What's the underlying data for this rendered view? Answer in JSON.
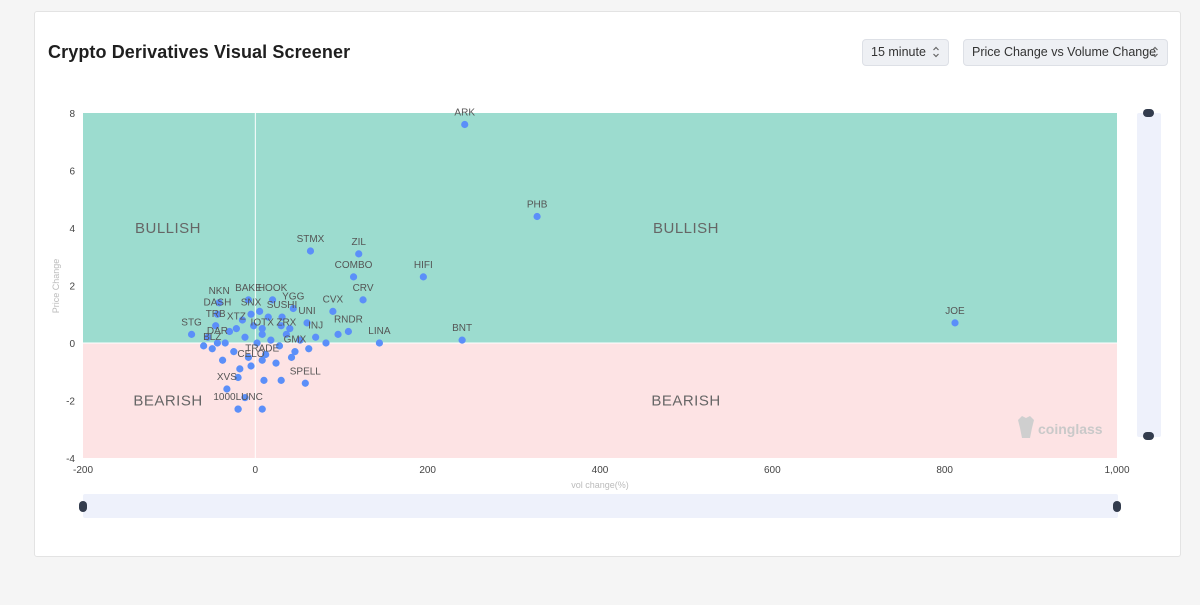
{
  "header": {
    "title": "Crypto Derivatives Visual Screener",
    "interval_value": "15 minute",
    "metric_value": "Price Change vs Volume Change"
  },
  "watermark": "coinglass",
  "colors": {
    "bullish": "#9cdccf",
    "bearish": "#fde3e4",
    "point": "#5b8ff9",
    "slider_track": "#eef1fb"
  },
  "chart_data": {
    "type": "scatter",
    "xlabel": "vol change(%)",
    "ylabel": "Price Change",
    "xlim": [
      -200,
      1000
    ],
    "ylim": [
      -4,
      8
    ],
    "x_ticks": [
      -200,
      0,
      200,
      400,
      600,
      800,
      1000
    ],
    "x_tick_labels": [
      "-200",
      "0",
      "200",
      "400",
      "600",
      "800",
      "1,000"
    ],
    "y_ticks": [
      -4,
      -2,
      0,
      2,
      4,
      6,
      8
    ],
    "y_tick_labels": [
      "-4",
      "-2",
      "0",
      "2",
      "4",
      "6",
      "8"
    ],
    "zones": [
      {
        "label": "BULLISH",
        "y_from": 0,
        "y_to": 8
      },
      {
        "label": "BEARISH",
        "y_from": -4,
        "y_to": 0
      }
    ],
    "zone_labels": [
      "BULLISH",
      "BULLISH",
      "BEARISH",
      "BEARISH"
    ],
    "labeled_points": [
      {
        "name": "ARK",
        "x": 243,
        "y": 7.6
      },
      {
        "name": "PHB",
        "x": 327,
        "y": 4.4
      },
      {
        "name": "JOE",
        "x": 812,
        "y": 0.7
      },
      {
        "name": "STMX",
        "x": 64,
        "y": 3.2
      },
      {
        "name": "ZIL",
        "x": 120,
        "y": 3.1
      },
      {
        "name": "COMBO",
        "x": 114,
        "y": 2.3
      },
      {
        "name": "HIFI",
        "x": 195,
        "y": 2.3
      },
      {
        "name": "CRV",
        "x": 125,
        "y": 1.5
      },
      {
        "name": "CVX",
        "x": 90,
        "y": 1.1
      },
      {
        "name": "HOOK",
        "x": 20,
        "y": 1.5
      },
      {
        "name": "BAKE",
        "x": -8,
        "y": 1.5
      },
      {
        "name": "NKN",
        "x": -42,
        "y": 1.4
      },
      {
        "name": "YGG",
        "x": 44,
        "y": 1.2
      },
      {
        "name": "DASH",
        "x": -44,
        "y": 1.0
      },
      {
        "name": "SNX",
        "x": -5,
        "y": 1.0
      },
      {
        "name": "SUSHI",
        "x": 31,
        "y": 0.9
      },
      {
        "name": "UNI",
        "x": 60,
        "y": 0.7
      },
      {
        "name": "RNDR",
        "x": 108,
        "y": 0.4
      },
      {
        "name": "STG",
        "x": -74,
        "y": 0.3
      },
      {
        "name": "TRB",
        "x": -46,
        "y": 0.6
      },
      {
        "name": "XTZ",
        "x": -22,
        "y": 0.5
      },
      {
        "name": "INJ",
        "x": 70,
        "y": 0.2
      },
      {
        "name": "LINA",
        "x": 144,
        "y": 0.0
      },
      {
        "name": "BNT",
        "x": 240,
        "y": 0.1
      },
      {
        "name": "ZRX",
        "x": 36,
        "y": 0.3
      },
      {
        "name": "IOTX",
        "x": 8,
        "y": 0.3
      },
      {
        "name": "DAR",
        "x": -44,
        "y": 0.0
      },
      {
        "name": "GMX",
        "x": 46,
        "y": -0.3
      },
      {
        "name": "BLZ",
        "x": -50,
        "y": -0.2
      },
      {
        "name": "TRADE",
        "x": 8,
        "y": -0.6
      },
      {
        "name": "CELO",
        "x": -5,
        "y": -0.8
      },
      {
        "name": "SPELL",
        "x": 58,
        "y": -1.4
      },
      {
        "name": "XVS",
        "x": -33,
        "y": -1.6
      },
      {
        "name": "1000LUNC",
        "x": -20,
        "y": -2.3
      }
    ],
    "unlabeled_points": [
      {
        "x": -15,
        "y": 0.8
      },
      {
        "x": 5,
        "y": 1.1
      },
      {
        "x": 15,
        "y": 0.9
      },
      {
        "x": -30,
        "y": 0.4
      },
      {
        "x": -12,
        "y": 0.2
      },
      {
        "x": 2,
        "y": 0.0
      },
      {
        "x": 18,
        "y": 0.1
      },
      {
        "x": 28,
        "y": -0.1
      },
      {
        "x": -25,
        "y": -0.3
      },
      {
        "x": -8,
        "y": -0.5
      },
      {
        "x": 12,
        "y": -0.4
      },
      {
        "x": 24,
        "y": -0.7
      },
      {
        "x": -38,
        "y": -0.6
      },
      {
        "x": -18,
        "y": -0.9
      },
      {
        "x": 40,
        "y": 0.5
      },
      {
        "x": 52,
        "y": 0.1
      },
      {
        "x": 62,
        "y": -0.2
      },
      {
        "x": 82,
        "y": 0.0
      },
      {
        "x": -55,
        "y": 0.2
      },
      {
        "x": -60,
        "y": -0.1
      },
      {
        "x": -2,
        "y": 0.6
      },
      {
        "x": 8,
        "y": 0.5
      },
      {
        "x": 30,
        "y": 0.6
      },
      {
        "x": -35,
        "y": 0.0
      },
      {
        "x": -20,
        "y": -1.2
      },
      {
        "x": 10,
        "y": -1.3
      },
      {
        "x": 30,
        "y": -1.3
      },
      {
        "x": -12,
        "y": -1.9
      },
      {
        "x": 8,
        "y": -2.3
      },
      {
        "x": -20,
        "y": -2.3
      },
      {
        "x": 42,
        "y": -0.5
      },
      {
        "x": 96,
        "y": 0.3
      }
    ]
  }
}
